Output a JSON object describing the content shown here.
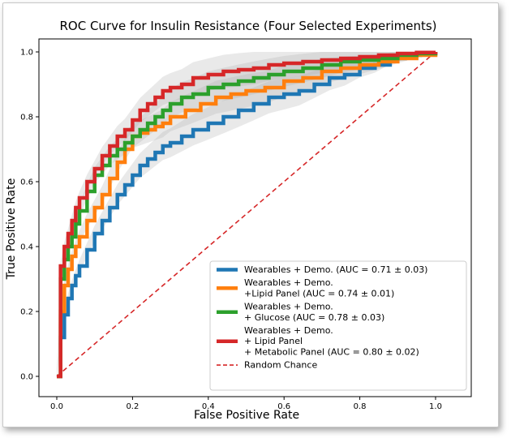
{
  "chart_data": {
    "type": "line",
    "title": "ROC Curve for Insulin Resistance (Four Selected Experiments)",
    "xlabel": "False Positive Rate",
    "ylabel": "True Positive Rate",
    "xlim": [
      0,
      1
    ],
    "ylim": [
      0,
      1
    ],
    "xticks": [
      "0.0",
      "0.2",
      "0.4",
      "0.6",
      "0.8",
      "1.0"
    ],
    "yticks": [
      "0.0",
      "0.2",
      "0.4",
      "0.6",
      "0.8",
      "1.0"
    ],
    "grid": false,
    "legend_position": "lower-right",
    "series": [
      {
        "name": "Wearables + Demo. (AUC = 0.71 ± 0.03)",
        "legend_lines": [
          "Wearables + Demo. (AUC = 0.71 ± 0.03)"
        ],
        "color": "#1f77b4",
        "x": [
          0.0,
          0.01,
          0.02,
          0.03,
          0.04,
          0.05,
          0.06,
          0.08,
          0.1,
          0.12,
          0.14,
          0.16,
          0.18,
          0.2,
          0.22,
          0.24,
          0.26,
          0.28,
          0.3,
          0.33,
          0.36,
          0.4,
          0.44,
          0.48,
          0.52,
          0.56,
          0.6,
          0.64,
          0.68,
          0.72,
          0.76,
          0.8,
          0.84,
          0.88,
          0.92,
          0.96,
          1.0
        ],
        "y": [
          0.0,
          0.12,
          0.19,
          0.24,
          0.28,
          0.31,
          0.34,
          0.39,
          0.44,
          0.48,
          0.52,
          0.56,
          0.59,
          0.62,
          0.65,
          0.67,
          0.69,
          0.71,
          0.72,
          0.74,
          0.76,
          0.78,
          0.8,
          0.82,
          0.84,
          0.86,
          0.87,
          0.88,
          0.9,
          0.92,
          0.93,
          0.95,
          0.96,
          0.98,
          0.99,
          0.995,
          1.0
        ]
      },
      {
        "name": "Wearables + Demo. +Lipid Panel (AUC = 0.74 ± 0.01)",
        "legend_lines": [
          "Wearables + Demo.",
          "+Lipid Panel (AUC = 0.74 ± 0.01)"
        ],
        "color": "#ff7f0e",
        "x": [
          0.0,
          0.01,
          0.02,
          0.03,
          0.04,
          0.05,
          0.06,
          0.08,
          0.1,
          0.12,
          0.14,
          0.16,
          0.18,
          0.2,
          0.22,
          0.24,
          0.26,
          0.28,
          0.3,
          0.34,
          0.38,
          0.42,
          0.46,
          0.5,
          0.55,
          0.6,
          0.65,
          0.7,
          0.75,
          0.8,
          0.85,
          0.9,
          0.95,
          1.0
        ],
        "y": [
          0.0,
          0.2,
          0.28,
          0.33,
          0.37,
          0.4,
          0.43,
          0.48,
          0.52,
          0.56,
          0.61,
          0.66,
          0.7,
          0.74,
          0.75,
          0.76,
          0.77,
          0.78,
          0.8,
          0.82,
          0.84,
          0.86,
          0.87,
          0.88,
          0.89,
          0.91,
          0.92,
          0.94,
          0.95,
          0.96,
          0.97,
          0.98,
          0.99,
          1.0
        ]
      },
      {
        "name": "Wearables + Demo. + Glucose (AUC = 0.78 ± 0.03)",
        "legend_lines": [
          "Wearables + Demo.",
          " + Glucose (AUC = 0.78 ± 0.03)"
        ],
        "color": "#2ca02c",
        "x": [
          0.0,
          0.01,
          0.02,
          0.03,
          0.04,
          0.05,
          0.06,
          0.08,
          0.1,
          0.12,
          0.14,
          0.16,
          0.18,
          0.2,
          0.22,
          0.24,
          0.26,
          0.28,
          0.3,
          0.33,
          0.36,
          0.4,
          0.44,
          0.48,
          0.52,
          0.56,
          0.6,
          0.65,
          0.7,
          0.75,
          0.8,
          0.85,
          0.9,
          0.95,
          1.0
        ],
        "y": [
          0.0,
          0.3,
          0.36,
          0.4,
          0.43,
          0.47,
          0.51,
          0.57,
          0.62,
          0.65,
          0.68,
          0.7,
          0.72,
          0.74,
          0.76,
          0.78,
          0.8,
          0.82,
          0.84,
          0.86,
          0.87,
          0.89,
          0.9,
          0.91,
          0.92,
          0.93,
          0.94,
          0.95,
          0.96,
          0.97,
          0.975,
          0.98,
          0.99,
          0.995,
          1.0
        ]
      },
      {
        "name": "Wearables + Demo. + Lipid Panel + Metabolic Panel (AUC = 0.80 ± 0.02)",
        "legend_lines": [
          "Wearables + Demo.",
          "+ Lipid Panel",
          "+ Metabolic Panel (AUC = 0.80 ± 0.02)"
        ],
        "color": "#d62728",
        "x": [
          0.0,
          0.01,
          0.02,
          0.03,
          0.04,
          0.05,
          0.06,
          0.08,
          0.1,
          0.12,
          0.14,
          0.16,
          0.18,
          0.2,
          0.22,
          0.24,
          0.26,
          0.28,
          0.3,
          0.33,
          0.36,
          0.4,
          0.44,
          0.48,
          0.52,
          0.56,
          0.6,
          0.65,
          0.7,
          0.75,
          0.8,
          0.85,
          0.9,
          0.95,
          1.0
        ],
        "y": [
          0.0,
          0.34,
          0.4,
          0.44,
          0.48,
          0.52,
          0.55,
          0.6,
          0.64,
          0.68,
          0.71,
          0.74,
          0.76,
          0.79,
          0.82,
          0.84,
          0.86,
          0.88,
          0.89,
          0.9,
          0.92,
          0.93,
          0.94,
          0.945,
          0.95,
          0.96,
          0.965,
          0.97,
          0.975,
          0.98,
          0.985,
          0.99,
          0.995,
          0.998,
          1.0
        ]
      }
    ],
    "reference_line": {
      "name": "Random Chance",
      "color": "#d62728",
      "x": [
        0,
        1
      ],
      "y": [
        0,
        1
      ]
    }
  }
}
